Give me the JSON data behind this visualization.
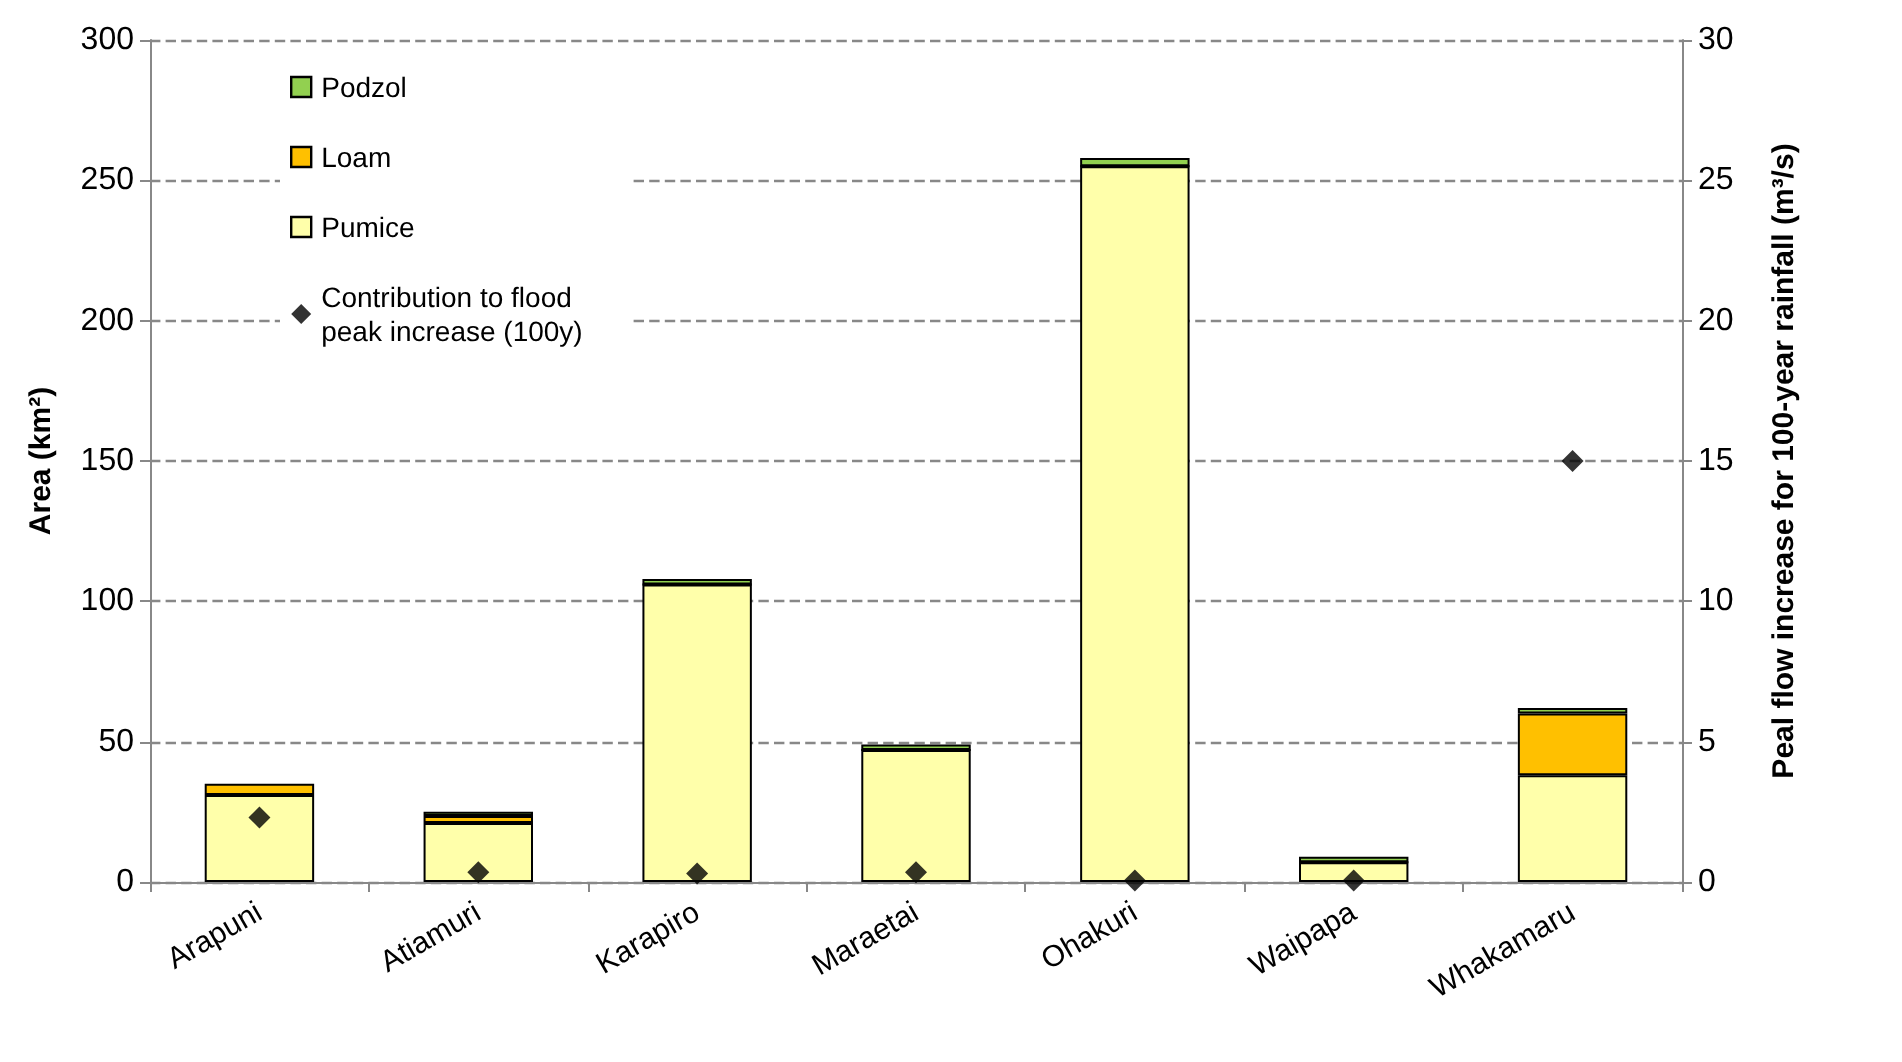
{
  "chart_data": {
    "type": "bar",
    "stacked": true,
    "categories": [
      "Arapuni",
      "Atiamuri",
      "Karapiro",
      "Maraetai",
      "Ohakuri",
      "Waipapa",
      "Whakamaru"
    ],
    "ylabel": "Area (km²)",
    "y2label": "Peal flow increase for 100-year rainfall (m³/s)",
    "ylim": [
      0,
      300
    ],
    "yticks": [
      0,
      50,
      100,
      150,
      200,
      250,
      300
    ],
    "y2lim": [
      0,
      30
    ],
    "y2ticks": [
      0,
      5,
      10,
      15,
      20,
      25,
      30
    ],
    "grid": "y",
    "legend": "top left",
    "series": [
      {
        "name": "Pumice",
        "color": "#ffffaa",
        "values": [
          31,
          21,
          106,
          47,
          255,
          7,
          38
        ]
      },
      {
        "name": "Loam",
        "color": "#ffc000",
        "values": [
          4,
          2.5,
          0,
          0,
          0,
          0,
          22
        ]
      },
      {
        "name": "Podzol",
        "color": "#92d050",
        "values": [
          null,
          1.5,
          2,
          2,
          3,
          2,
          2
        ]
      },
      {
        "name": "Contribution to flood peak increase (100y)",
        "type": "scatter",
        "axis": "y2",
        "marker": "diamond",
        "color": "#000000",
        "values": [
          2.3,
          0.35,
          0.3,
          0.35,
          0.05,
          0.05,
          15
        ]
      }
    ]
  }
}
